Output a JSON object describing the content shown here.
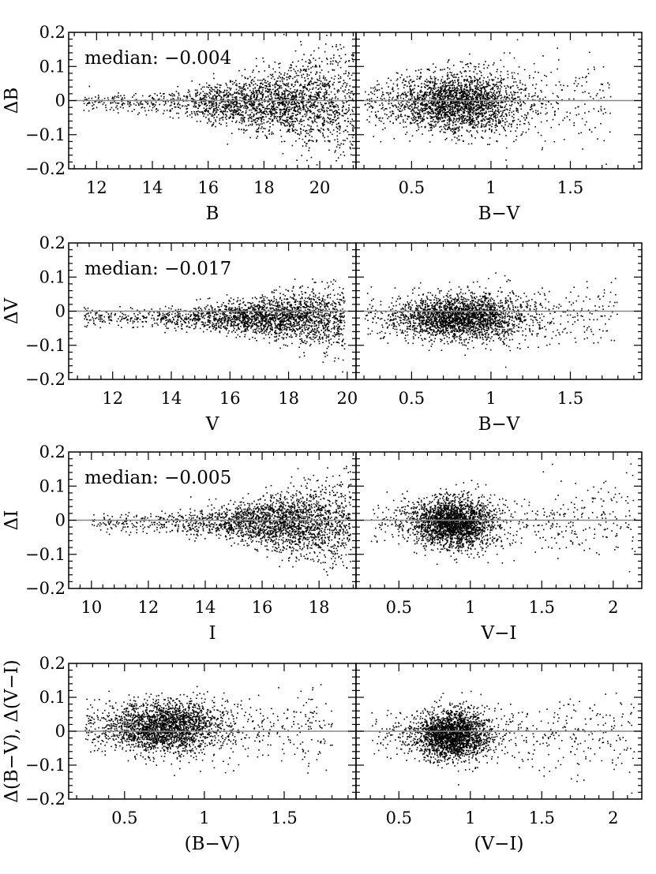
{
  "chart_data": [
    {
      "type": "scatter",
      "name": "dB_vs_B",
      "xlabel": "B",
      "ylabel": "ΔB",
      "xlim": [
        11,
        21.3
      ],
      "ylim": [
        -0.2,
        0.2
      ],
      "xticks": [
        12,
        14,
        16,
        18,
        20
      ],
      "yticks": [
        -0.2,
        -0.1,
        0,
        0.1,
        0.2
      ],
      "yticklabels": [
        "−0.2",
        "−0.1",
        "0",
        "0.1",
        "0.2"
      ],
      "xticklabels": [
        "12",
        "14",
        "16",
        "18",
        "20"
      ],
      "annotation": "median: −0.004",
      "reference_line": 0,
      "cloud": {
        "min": 11.5,
        "max": 21.2,
        "center": 18.6,
        "spread": 1.9,
        "sigma_min": 0.015,
        "sigma_max": 0.085,
        "offset": -0.004,
        "n": 2600
      }
    },
    {
      "type": "scatter",
      "name": "dB_vs_BV",
      "xlabel": "B−V",
      "ylabel": "",
      "xlim": [
        0.15,
        1.95
      ],
      "ylim": [
        -0.2,
        0.2
      ],
      "xticks": [
        0.5,
        1,
        1.5
      ],
      "xticklabels": [
        "0.5",
        "1",
        "1.5"
      ],
      "reference_line": 0,
      "cloud": {
        "min": 0.2,
        "max": 1.75,
        "center": 0.78,
        "spread": 0.2,
        "sigma_min": 0.04,
        "sigma_max": 0.07,
        "offset": -0.004,
        "n": 2600
      }
    },
    {
      "type": "scatter",
      "name": "dV_vs_V",
      "xlabel": "V",
      "ylabel": "ΔV",
      "xlim": [
        10.5,
        20.3
      ],
      "ylim": [
        -0.2,
        0.2
      ],
      "xticks": [
        12,
        14,
        16,
        18,
        20
      ],
      "yticks": [
        -0.2,
        -0.1,
        0,
        0.1,
        0.2
      ],
      "yticklabels": [
        "−0.2",
        "−0.1",
        "0",
        "0.1",
        "0.2"
      ],
      "xticklabels": [
        "12",
        "14",
        "16",
        "18",
        "20"
      ],
      "annotation": "median: −0.017",
      "reference_line": 0,
      "cloud": {
        "min": 11.0,
        "max": 19.9,
        "center": 17.8,
        "spread": 1.8,
        "sigma_min": 0.012,
        "sigma_max": 0.05,
        "offset": -0.017,
        "n": 2600
      }
    },
    {
      "type": "scatter",
      "name": "dV_vs_BV",
      "xlabel": "B−V",
      "ylabel": "",
      "xlim": [
        0.15,
        1.95
      ],
      "ylim": [
        -0.2,
        0.2
      ],
      "xticks": [
        0.5,
        1,
        1.5
      ],
      "xticklabels": [
        "0.5",
        "1",
        "1.5"
      ],
      "reference_line": 0,
      "cloud": {
        "min": 0.2,
        "max": 1.8,
        "center": 0.8,
        "spread": 0.2,
        "sigma_min": 0.03,
        "sigma_max": 0.05,
        "offset": -0.017,
        "n": 2600
      }
    },
    {
      "type": "scatter",
      "name": "dI_vs_I",
      "xlabel": "I",
      "ylabel": "ΔI",
      "xlim": [
        9.2,
        19.3
      ],
      "ylim": [
        -0.2,
        0.2
      ],
      "xticks": [
        10,
        12,
        14,
        16,
        18
      ],
      "yticks": [
        -0.2,
        -0.1,
        0,
        0.1,
        0.2
      ],
      "yticklabels": [
        "−0.2",
        "−0.1",
        "0",
        "0.1",
        "0.2"
      ],
      "xticklabels": [
        "10",
        "12",
        "14",
        "16",
        "18"
      ],
      "annotation": "median: −0.005",
      "reference_line": 0,
      "cloud": {
        "min": 10.0,
        "max": 19.1,
        "center": 17.0,
        "spread": 1.6,
        "sigma_min": 0.012,
        "sigma_max": 0.07,
        "offset": -0.005,
        "n": 2600
      }
    },
    {
      "type": "scatter",
      "name": "dI_vs_VI",
      "xlabel": "V−I",
      "ylabel": "",
      "xlim": [
        0.2,
        2.2
      ],
      "ylim": [
        -0.2,
        0.2
      ],
      "xticks": [
        0.5,
        1,
        1.5,
        2
      ],
      "xticklabels": [
        "0.5",
        "1",
        "1.5",
        "2"
      ],
      "reference_line": 0,
      "cloud": {
        "min": 0.3,
        "max": 2.15,
        "center": 0.88,
        "spread": 0.14,
        "sigma_min": 0.035,
        "sigma_max": 0.06,
        "offset": -0.005,
        "n": 2600
      }
    },
    {
      "type": "scatter",
      "name": "dcolor_vs_BV",
      "xlabel": "(B−V)",
      "ylabel": "Δ(B−V),  Δ(V−I)",
      "xlim": [
        0.15,
        1.95
      ],
      "ylim": [
        -0.2,
        0.2
      ],
      "xticks": [
        0.5,
        1,
        1.5
      ],
      "yticks": [
        -0.2,
        -0.1,
        0,
        0.1,
        0.2
      ],
      "yticklabels": [
        "−0.2",
        "−0.1",
        "0",
        "0.1",
        "0.2"
      ],
      "xticklabels": [
        "0.5",
        "1",
        "1.5"
      ],
      "reference_line": 0,
      "cloud": {
        "min": 0.25,
        "max": 1.8,
        "center": 0.75,
        "spread": 0.18,
        "sigma_min": 0.035,
        "sigma_max": 0.06,
        "offset": 0.013,
        "n": 2600
      }
    },
    {
      "type": "scatter",
      "name": "dcolor_vs_VI",
      "xlabel": "(V−I)",
      "ylabel": "",
      "xlim": [
        0.2,
        2.2
      ],
      "ylim": [
        -0.2,
        0.2
      ],
      "xticks": [
        0.5,
        1,
        1.5,
        2
      ],
      "xticklabels": [
        "0.5",
        "1",
        "1.5",
        "2"
      ],
      "reference_line": 0,
      "cloud": {
        "min": 0.3,
        "max": 2.15,
        "center": 0.87,
        "spread": 0.13,
        "sigma_min": 0.035,
        "sigma_max": 0.06,
        "offset": -0.01,
        "n": 2600
      }
    }
  ]
}
